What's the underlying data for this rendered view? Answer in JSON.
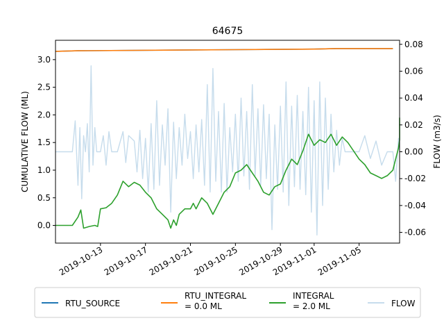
{
  "chart_data": {
    "type": "line",
    "title": "64675",
    "ylabel_left": "CUMULATIVE FLOW (ML)",
    "ylabel_right": "FLOW (m3/s)",
    "xlabel": "",
    "x_range": [
      "2019-10-09",
      "2019-11-08"
    ],
    "ylim_left": [
      -0.32,
      3.35
    ],
    "ylim_right": [
      -0.068,
      0.083
    ],
    "x_ticks": [
      "2019-10-13",
      "2019-10-17",
      "2019-10-21",
      "2019-10-25",
      "2019-10-29",
      "2019-11-01",
      "2019-11-05"
    ],
    "y_ticks_left": [
      "0.0",
      "0.5",
      "1.0",
      "1.5",
      "2.0",
      "2.5",
      "3.0"
    ],
    "y_ticks_right": [
      "-0.06",
      "-0.04",
      "-0.02",
      "0.00",
      "0.02",
      "0.04",
      "0.06",
      "0.08"
    ],
    "legend": {
      "position": "below",
      "entries": [
        {
          "label": "RTU_SOURCE",
          "color": "#1f77b4"
        },
        {
          "label": "RTU_INTEGRAL\n= 0.0 ML",
          "color": "#ff7f0e"
        },
        {
          "label": "INTEGRAL\n= 2.0 ML",
          "color": "#2ca02c"
        },
        {
          "label": "FLOW",
          "color": "#c6dcec"
        }
      ]
    },
    "series": [
      {
        "name": "RTU_SOURCE",
        "axis": "left",
        "color": "#1f77b4",
        "points": [
          [
            "2019-10-09",
            3.15
          ],
          [
            "2019-10-11",
            3.16
          ],
          [
            "2019-10-25",
            3.18
          ],
          [
            "2019-11-01",
            3.19
          ],
          [
            "2019-11-03",
            3.2
          ],
          [
            "2019-11-08",
            3.2
          ]
        ]
      },
      {
        "name": "RTU_INTEGRAL",
        "axis": "left",
        "color": "#ff7f0e",
        "points": [
          [
            "2019-10-09",
            3.15
          ],
          [
            "2019-10-11",
            3.16
          ],
          [
            "2019-10-25",
            3.18
          ],
          [
            "2019-11-01",
            3.19
          ],
          [
            "2019-11-03",
            3.2
          ],
          [
            "2019-11-08",
            3.2
          ]
        ]
      },
      {
        "name": "INTEGRAL",
        "axis": "left",
        "color": "#2ca02c",
        "points": [
          [
            "2019-10-09",
            0.0
          ],
          [
            "2019-10-10",
            0.0
          ],
          [
            "2019-10-10T12",
            0.0
          ],
          [
            "2019-10-11",
            0.15
          ],
          [
            "2019-10-11T06",
            0.28
          ],
          [
            "2019-10-11T12",
            -0.05
          ],
          [
            "2019-10-12",
            -0.02
          ],
          [
            "2019-10-12T12",
            0.0
          ],
          [
            "2019-10-12T18",
            -0.02
          ],
          [
            "2019-10-13",
            0.3
          ],
          [
            "2019-10-13T12",
            0.32
          ],
          [
            "2019-10-14",
            0.4
          ],
          [
            "2019-10-14T12",
            0.55
          ],
          [
            "2019-10-15",
            0.8
          ],
          [
            "2019-10-15T12",
            0.7
          ],
          [
            "2019-10-16",
            0.78
          ],
          [
            "2019-10-16T12",
            0.73
          ],
          [
            "2019-10-17",
            0.6
          ],
          [
            "2019-10-17T12",
            0.5
          ],
          [
            "2019-10-18",
            0.3
          ],
          [
            "2019-10-18T12",
            0.2
          ],
          [
            "2019-10-19",
            0.1
          ],
          [
            "2019-10-19T06",
            -0.05
          ],
          [
            "2019-10-19T12",
            0.1
          ],
          [
            "2019-10-19T18",
            0.0
          ],
          [
            "2019-10-20",
            0.2
          ],
          [
            "2019-10-20T12",
            0.3
          ],
          [
            "2019-10-21",
            0.3
          ],
          [
            "2019-10-21T06",
            0.4
          ],
          [
            "2019-10-21T12",
            0.3
          ],
          [
            "2019-10-22",
            0.5
          ],
          [
            "2019-10-22T12",
            0.4
          ],
          [
            "2019-10-23",
            0.2
          ],
          [
            "2019-10-23T12",
            0.4
          ],
          [
            "2019-10-24",
            0.6
          ],
          [
            "2019-10-24T12",
            0.7
          ],
          [
            "2019-10-25",
            0.95
          ],
          [
            "2019-10-25T12",
            1.0
          ],
          [
            "2019-10-26",
            1.1
          ],
          [
            "2019-10-26T12",
            0.95
          ],
          [
            "2019-10-27",
            0.8
          ],
          [
            "2019-10-27T12",
            0.6
          ],
          [
            "2019-10-28",
            0.55
          ],
          [
            "2019-10-28T12",
            0.7
          ],
          [
            "2019-10-29",
            0.75
          ],
          [
            "2019-10-29T12",
            1.0
          ],
          [
            "2019-10-30",
            1.2
          ],
          [
            "2019-10-30T12",
            1.1
          ],
          [
            "2019-10-31",
            1.35
          ],
          [
            "2019-10-31T12",
            1.65
          ],
          [
            "2019-11-01",
            1.45
          ],
          [
            "2019-11-01T12",
            1.55
          ],
          [
            "2019-11-02",
            1.5
          ],
          [
            "2019-11-02T12",
            1.65
          ],
          [
            "2019-11-03",
            1.45
          ],
          [
            "2019-11-03T12",
            1.6
          ],
          [
            "2019-11-04",
            1.5
          ],
          [
            "2019-11-04T12",
            1.35
          ],
          [
            "2019-11-05",
            1.2
          ],
          [
            "2019-11-05T12",
            1.1
          ],
          [
            "2019-11-06",
            0.95
          ],
          [
            "2019-11-06T12",
            0.9
          ],
          [
            "2019-11-07",
            0.85
          ],
          [
            "2019-11-07T12",
            0.9
          ],
          [
            "2019-11-08",
            1.0
          ],
          [
            "2019-11-08T06",
            1.2
          ],
          [
            "2019-11-08T12",
            1.4
          ],
          [
            "2019-11-08T18",
            1.55
          ],
          [
            "2019-11-09",
            1.95
          ]
        ]
      },
      {
        "name": "FLOW",
        "axis": "right",
        "color": "#c6dcec",
        "points": [
          [
            "2019-10-09",
            0.0
          ],
          [
            "2019-10-10T12",
            0.0
          ],
          [
            "2019-10-10T18",
            0.023
          ],
          [
            "2019-10-11",
            -0.025
          ],
          [
            "2019-10-11T04",
            0.018
          ],
          [
            "2019-10-11T08",
            -0.035
          ],
          [
            "2019-10-11T12",
            0.012
          ],
          [
            "2019-10-11T16",
            0.0
          ],
          [
            "2019-10-11T20",
            0.021
          ],
          [
            "2019-10-12",
            -0.015
          ],
          [
            "2019-10-12T04",
            0.064
          ],
          [
            "2019-10-12T08",
            -0.01
          ],
          [
            "2019-10-12T12",
            0.018
          ],
          [
            "2019-10-12T16",
            0.0
          ],
          [
            "2019-10-13",
            0.0
          ],
          [
            "2019-10-13T06",
            0.012
          ],
          [
            "2019-10-13T12",
            -0.01
          ],
          [
            "2019-10-13T18",
            0.015
          ],
          [
            "2019-10-14",
            0.0
          ],
          [
            "2019-10-14T12",
            0.0
          ],
          [
            "2019-10-15",
            0.015
          ],
          [
            "2019-10-15T06",
            -0.008
          ],
          [
            "2019-10-15T12",
            0.012
          ],
          [
            "2019-10-16",
            0.008
          ],
          [
            "2019-10-16T06",
            -0.015
          ],
          [
            "2019-10-16T12",
            0.016
          ],
          [
            "2019-10-16T18",
            -0.02
          ],
          [
            "2019-10-17",
            0.01
          ],
          [
            "2019-10-17T06",
            -0.03
          ],
          [
            "2019-10-17T12",
            0.021
          ],
          [
            "2019-10-17T18",
            -0.028
          ],
          [
            "2019-10-18",
            0.038
          ],
          [
            "2019-10-18T06",
            -0.025
          ],
          [
            "2019-10-18T12",
            0.02
          ],
          [
            "2019-10-18T18",
            -0.01
          ],
          [
            "2019-10-19",
            0.032
          ],
          [
            "2019-10-19T06",
            -0.045
          ],
          [
            "2019-10-19T12",
            0.022
          ],
          [
            "2019-10-19T18",
            -0.02
          ],
          [
            "2019-10-20",
            0.018
          ],
          [
            "2019-10-20T06",
            -0.01
          ],
          [
            "2019-10-20T12",
            0.028
          ],
          [
            "2019-10-20T18",
            -0.005
          ],
          [
            "2019-10-21",
            0.015
          ],
          [
            "2019-10-21T06",
            -0.02
          ],
          [
            "2019-10-21T12",
            0.02
          ],
          [
            "2019-10-21T18",
            -0.015
          ],
          [
            "2019-10-22",
            0.024
          ],
          [
            "2019-10-22T06",
            -0.025
          ],
          [
            "2019-10-22T12",
            0.05
          ],
          [
            "2019-10-22T18",
            -0.03
          ],
          [
            "2019-10-23",
            0.062
          ],
          [
            "2019-10-23T06",
            -0.022
          ],
          [
            "2019-10-23T12",
            0.03
          ],
          [
            "2019-10-23T18",
            -0.03
          ],
          [
            "2019-10-24",
            0.036
          ],
          [
            "2019-10-24T06",
            -0.03
          ],
          [
            "2019-10-24T12",
            0.018
          ],
          [
            "2019-10-24T18",
            -0.015
          ],
          [
            "2019-10-25",
            0.028
          ],
          [
            "2019-10-25T06",
            -0.022
          ],
          [
            "2019-10-25T12",
            0.04
          ],
          [
            "2019-10-25T18",
            -0.018
          ],
          [
            "2019-10-26",
            0.03
          ],
          [
            "2019-10-26T06",
            -0.028
          ],
          [
            "2019-10-26T12",
            0.05
          ],
          [
            "2019-10-26T18",
            -0.018
          ],
          [
            "2019-10-27",
            0.032
          ],
          [
            "2019-10-27T06",
            -0.025
          ],
          [
            "2019-10-27T12",
            0.035
          ],
          [
            "2019-10-27T18",
            -0.02
          ],
          [
            "2019-10-28",
            0.028
          ],
          [
            "2019-10-28T06",
            -0.058
          ],
          [
            "2019-10-28T12",
            0.02
          ],
          [
            "2019-10-28T18",
            -0.028
          ],
          [
            "2019-10-29",
            0.034
          ],
          [
            "2019-10-29T06",
            -0.03
          ],
          [
            "2019-10-29T12",
            0.052
          ],
          [
            "2019-10-29T18",
            -0.04
          ],
          [
            "2019-10-30",
            0.034
          ],
          [
            "2019-10-30T06",
            -0.026
          ],
          [
            "2019-10-30T12",
            0.042
          ],
          [
            "2019-10-30T18",
            -0.028
          ],
          [
            "2019-10-31",
            0.03
          ],
          [
            "2019-10-31T06",
            -0.032
          ],
          [
            "2019-10-31T12",
            0.048
          ],
          [
            "2019-10-31T18",
            -0.045
          ],
          [
            "2019-11-01",
            0.038
          ],
          [
            "2019-11-01T06",
            -0.062
          ],
          [
            "2019-11-01T12",
            0.052
          ],
          [
            "2019-11-01T18",
            -0.04
          ],
          [
            "2019-11-02",
            0.04
          ],
          [
            "2019-11-02T06",
            -0.028
          ],
          [
            "2019-11-02T12",
            0.028
          ],
          [
            "2019-11-02T18",
            -0.015
          ],
          [
            "2019-11-03",
            0.016
          ],
          [
            "2019-11-03T06",
            -0.01
          ],
          [
            "2019-11-03T12",
            0.01
          ],
          [
            "2019-11-03T18",
            0.0
          ],
          [
            "2019-11-04",
            0.0
          ],
          [
            "2019-11-05",
            0.0
          ],
          [
            "2019-11-05T12",
            0.012
          ],
          [
            "2019-11-06",
            -0.005
          ],
          [
            "2019-11-06T12",
            0.008
          ],
          [
            "2019-11-07",
            -0.01
          ],
          [
            "2019-11-07T12",
            0.0
          ],
          [
            "2019-11-08",
            0.0
          ],
          [
            "2019-11-08T06",
            -0.022
          ],
          [
            "2019-11-08T12",
            0.01
          ],
          [
            "2019-11-09",
            0.0
          ]
        ]
      }
    ]
  }
}
